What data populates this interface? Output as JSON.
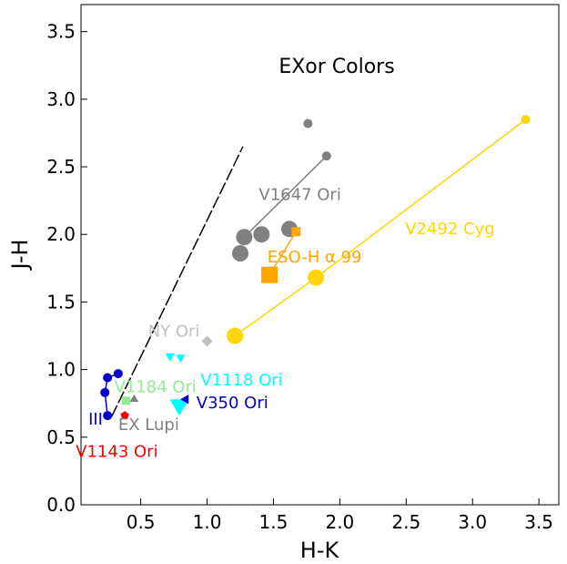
{
  "chart_data": {
    "type": "scatter",
    "title": "EXor Colors",
    "xlabel": "H-K",
    "ylabel": "J-H",
    "xlim": [
      0.05,
      3.65
    ],
    "ylim": [
      0.0,
      3.7
    ],
    "grid": false,
    "xticks": [
      "0.5",
      "1.0",
      "1.5",
      "2.0",
      "2.5",
      "3.0",
      "3.5"
    ],
    "xtick_values": [
      0.5,
      1.0,
      1.5,
      2.0,
      2.5,
      3.0,
      3.5
    ],
    "yticks": [
      "0.0",
      "0.5",
      "1.0",
      "1.5",
      "2.0",
      "2.5",
      "3.0",
      "3.5"
    ],
    "ytick_values": [
      0.0,
      0.5,
      1.0,
      1.5,
      2.0,
      2.5,
      3.0,
      3.5
    ],
    "reddening_line": {
      "x": [
        0.28,
        1.27
      ],
      "y": [
        0.65,
        2.65
      ],
      "style": "dashed",
      "color": "#000000"
    },
    "series": [
      {
        "name": "V2492 Cyg",
        "color": "#FFD700",
        "marker": "circle",
        "connect": true,
        "x": [
          1.21,
          1.82,
          3.4
        ],
        "y": [
          1.25,
          1.68,
          2.85
        ],
        "sizes": [
          9,
          9,
          5
        ],
        "label_at": [
          2.83,
          2.05
        ]
      },
      {
        "name": "V1647 Ori",
        "color": "#808080",
        "marker": "circle",
        "connect": true,
        "x": [
          1.28,
          1.9
        ],
        "y": [
          1.98,
          2.58
        ],
        "sizes": [
          9,
          5
        ],
        "label_at": [
          1.7,
          2.3
        ]
      },
      {
        "name": "",
        "color": "#808080",
        "marker": "circle",
        "connect": false,
        "x": [
          1.25,
          1.41,
          1.62,
          1.76
        ],
        "y": [
          1.86,
          2.0,
          2.04,
          2.82
        ],
        "sizes": [
          9,
          9,
          9,
          5
        ]
      },
      {
        "name": "ESO-H α 99",
        "color": "#FFA500",
        "marker": "square",
        "connect": true,
        "x": [
          1.47,
          1.67
        ],
        "y": [
          1.7,
          2.02
        ],
        "sizes": [
          9,
          5
        ],
        "label_at": [
          1.81,
          1.84
        ]
      },
      {
        "name": "NY Ori",
        "color": "#C0C0C0",
        "marker": "diamond",
        "connect": false,
        "x": [
          1.0
        ],
        "y": [
          1.21
        ],
        "sizes": [
          5
        ],
        "label_at": [
          0.75,
          1.29
        ]
      },
      {
        "name": "V1184 Ori",
        "color": "#90EE90",
        "marker": "square",
        "connect": false,
        "x": [
          0.39
        ],
        "y": [
          0.77
        ],
        "sizes": [
          4.5
        ],
        "label_at": [
          0.61,
          0.88
        ]
      },
      {
        "name": "V1118 Ori",
        "color": "#00FFFF",
        "marker": "triangle-down",
        "connect": false,
        "x": [
          0.72,
          0.8,
          0.79
        ],
        "y": [
          1.1,
          1.09,
          0.74
        ],
        "sizes": [
          5,
          5,
          10
        ],
        "label_at": [
          1.26,
          0.93
        ]
      },
      {
        "name": "V350 Ori",
        "color": "#0000CD",
        "marker": "triangle-left",
        "connect": false,
        "x": [
          0.84
        ],
        "y": [
          0.78
        ],
        "sizes": [
          5
        ],
        "label_at": [
          1.19,
          0.76
        ]
      },
      {
        "name": "EX Lupi",
        "color": "#808080",
        "marker": "triangle-up",
        "connect": false,
        "x": [
          0.45
        ],
        "y": [
          0.78
        ],
        "sizes": [
          5
        ],
        "label_at": [
          0.56,
          0.6
        ]
      },
      {
        "name": "V1143 Ori",
        "color": "#FF0000",
        "marker": "pentagon",
        "connect": false,
        "x": [
          0.38
        ],
        "y": [
          0.66
        ],
        "sizes": [
          4.5
        ],
        "label_at": [
          0.32,
          0.4
        ]
      },
      {
        "name": "III",
        "color": "#0000CD",
        "marker": "circle",
        "connect": true,
        "x": [
          0.25,
          0.23,
          0.25,
          0.33
        ],
        "y": [
          0.66,
          0.83,
          0.94,
          0.97
        ],
        "sizes": [
          5,
          5,
          5,
          5
        ],
        "label_at": [
          0.16,
          0.64
        ]
      }
    ]
  }
}
